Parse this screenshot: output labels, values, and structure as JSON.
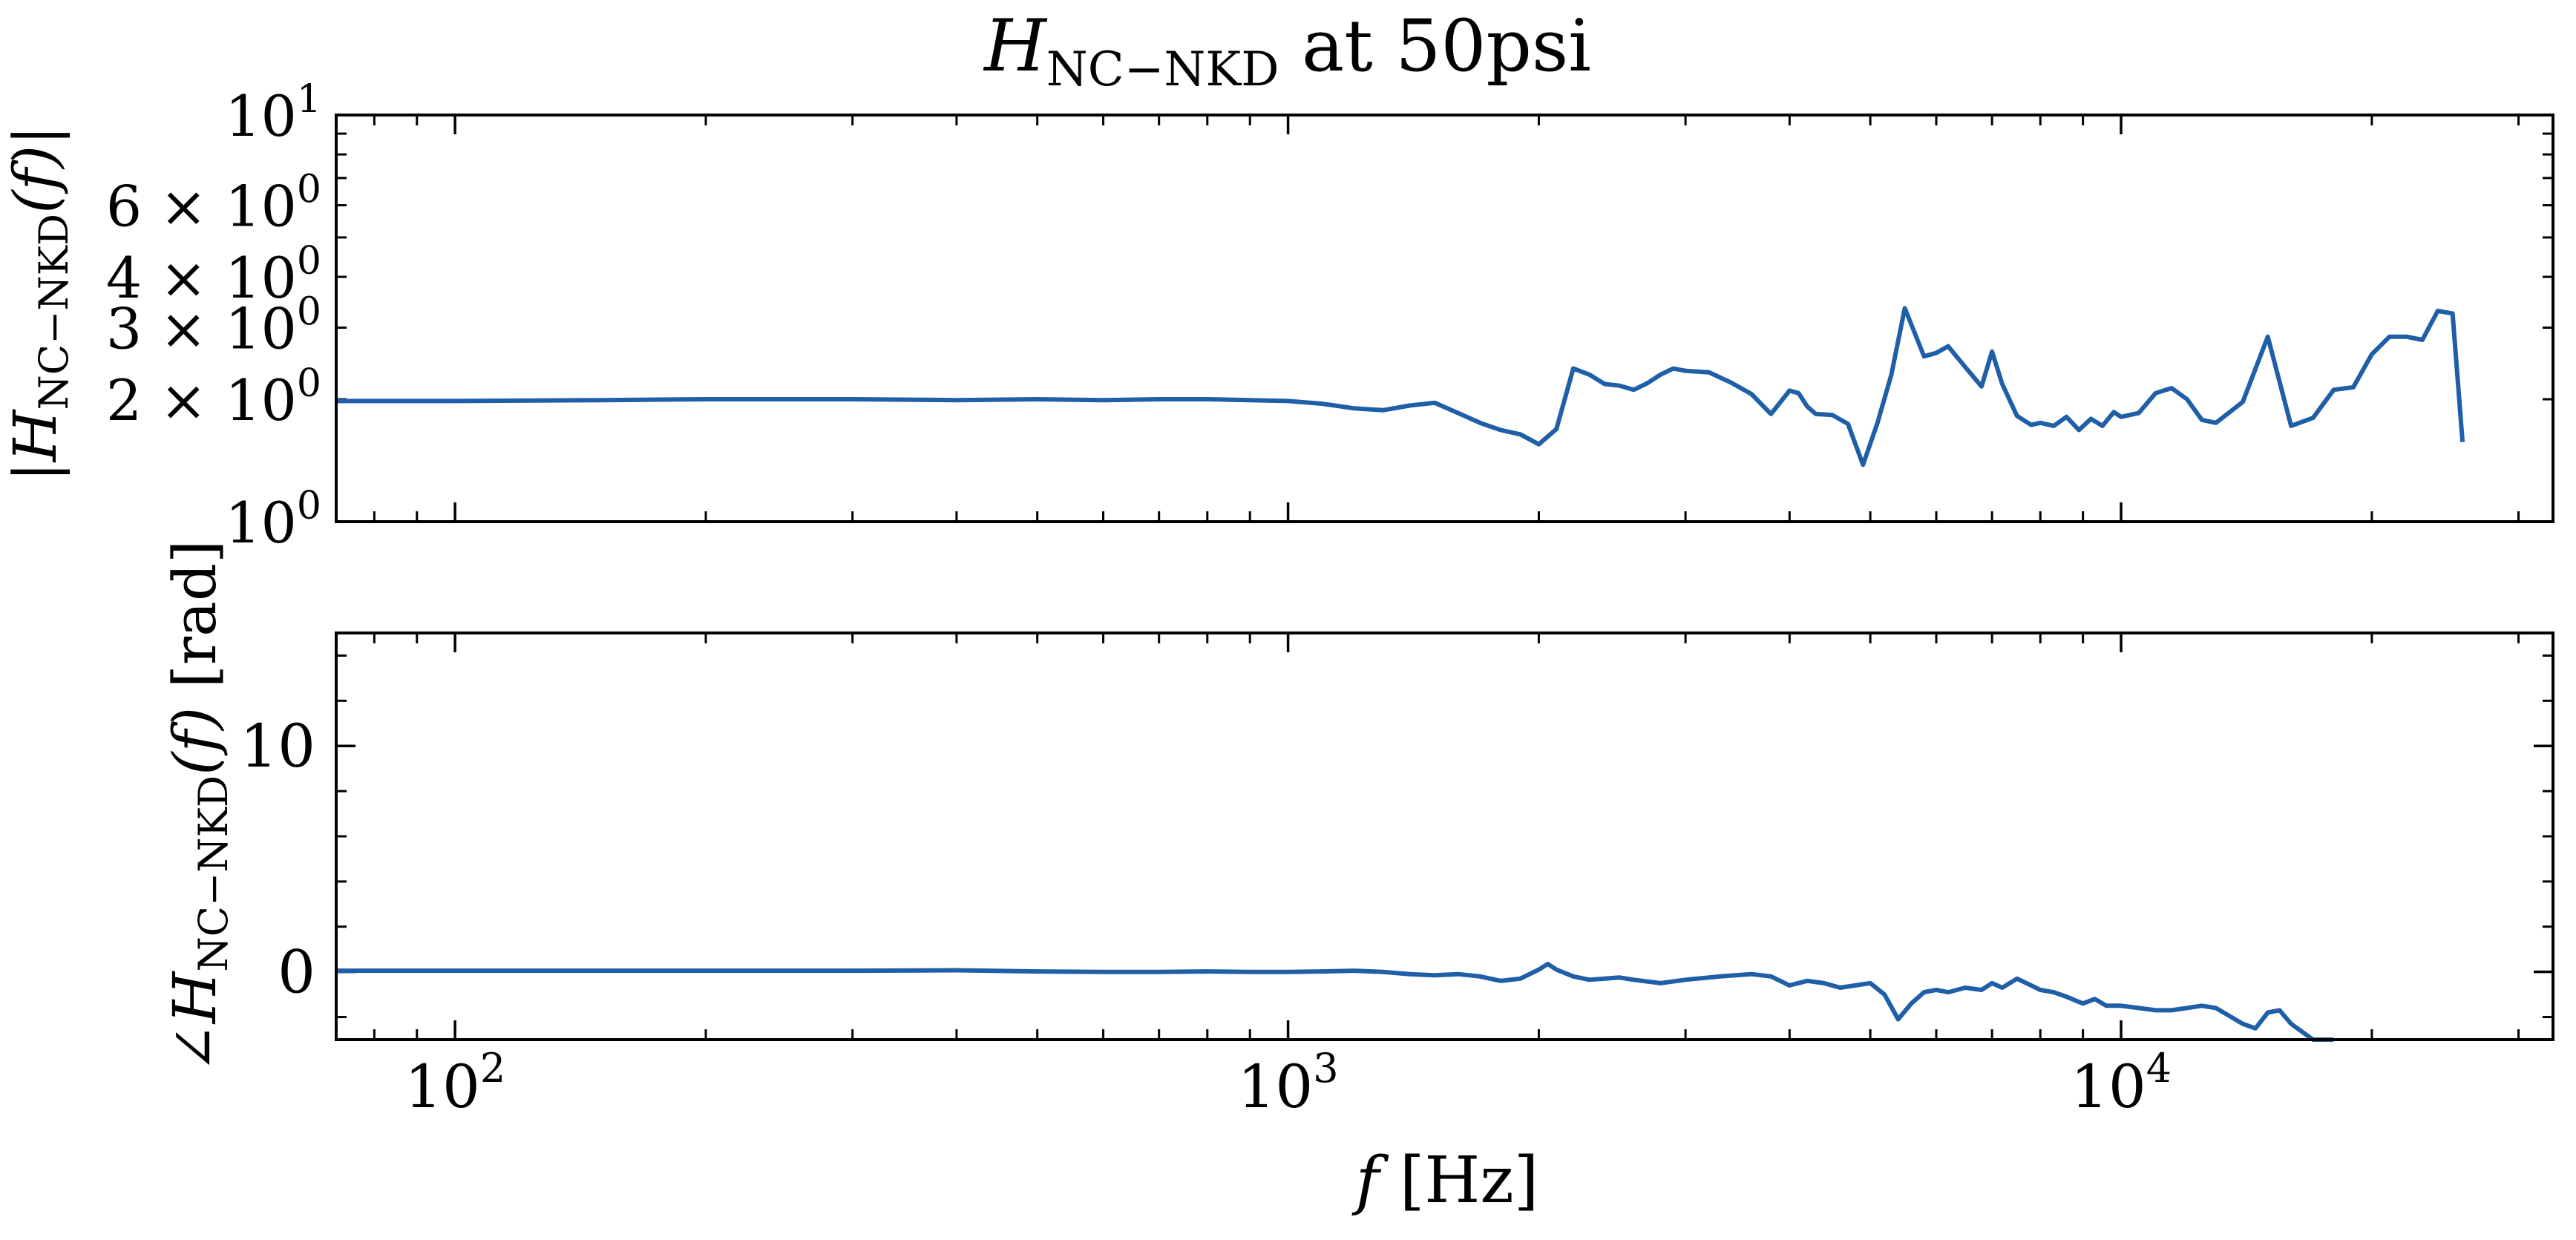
{
  "figure": {
    "title_main": "H",
    "title_sub": "NC−NKD",
    "title_rest": " at 50psi"
  },
  "magnitude_panel": {
    "ylabel_prefix": "|",
    "ylabel_H": "H",
    "ylabel_sub": "NC−NKD",
    "ylabel_arg": "(f)",
    "ylabel_suffix": "|",
    "yticks": [
      {
        "value": 10,
        "label_coef": "",
        "label_base": "10",
        "label_exp": "1"
      },
      {
        "value": 6,
        "label_coef": "6 × ",
        "label_base": "10",
        "label_exp": "0"
      },
      {
        "value": 4,
        "label_coef": "4 × ",
        "label_base": "10",
        "label_exp": "0"
      },
      {
        "value": 3,
        "label_coef": "3 × ",
        "label_base": "10",
        "label_exp": "0"
      },
      {
        "value": 2,
        "label_coef": "2 × ",
        "label_base": "10",
        "label_exp": "0"
      },
      {
        "value": 1,
        "label_coef": "",
        "label_base": "10",
        "label_exp": "0"
      }
    ]
  },
  "phase_panel": {
    "ylabel_angle": "∠",
    "ylabel_H": "H",
    "ylabel_sub": "NC−NKD",
    "ylabel_arg": "(f)",
    "ylabel_unit": " [rad]",
    "yticks": [
      {
        "value": 10,
        "label": "10"
      },
      {
        "value": 0,
        "label": "0"
      }
    ]
  },
  "xaxis": {
    "label_var": "f",
    "label_unit": " [Hz]",
    "ticks": [
      {
        "value": 100,
        "label_base": "10",
        "label_exp": "2"
      },
      {
        "value": 1000,
        "label_base": "10",
        "label_exp": "3"
      },
      {
        "value": 10000,
        "label_base": "10",
        "label_exp": "4"
      }
    ]
  },
  "colors": {
    "line": "#1f5fa8",
    "axes": "#000000",
    "background": "#ffffff"
  },
  "chart_data": [
    {
      "type": "line",
      "panel": "magnitude",
      "xscale": "log",
      "yscale": "log",
      "xlim": [
        72,
        33000
      ],
      "ylim": [
        1,
        10
      ],
      "grid": false,
      "series": [
        {
          "x": [
            72,
            100,
            150,
            200,
            300,
            400,
            500,
            600,
            700,
            800,
            1000,
            1100,
            1200,
            1300,
            1400,
            1500,
            1600,
            1700,
            1800,
            1900,
            2000,
            2100,
            2200,
            2300,
            2400,
            2500,
            2600,
            2700,
            2800,
            2900,
            3000,
            3200,
            3400,
            3600,
            3800,
            4000,
            4100,
            4200,
            4300,
            4500,
            4700,
            4900,
            5100,
            5300,
            5500,
            5800,
            6000,
            6200,
            6500,
            6800,
            7000,
            7200,
            7500,
            7800,
            8000,
            8300,
            8600,
            8900,
            9200,
            9500,
            9800,
            10000,
            10500,
            11000,
            11500,
            12000,
            12500,
            13000,
            14000,
            15000,
            16000,
            17000,
            18000,
            19000,
            20000,
            21000,
            22000,
            23000,
            24000,
            25000,
            25700
          ],
          "y": [
            1.98,
            1.98,
            1.99,
            2.0,
            2.0,
            1.99,
            2.0,
            1.99,
            2.0,
            2.0,
            1.98,
            1.95,
            1.9,
            1.88,
            1.93,
            1.96,
            1.85,
            1.75,
            1.68,
            1.64,
            1.55,
            1.69,
            2.38,
            2.3,
            2.18,
            2.16,
            2.11,
            2.19,
            2.3,
            2.38,
            2.35,
            2.33,
            2.2,
            2.06,
            1.84,
            2.1,
            2.07,
            1.92,
            1.84,
            1.83,
            1.74,
            1.38,
            1.75,
            2.3,
            3.35,
            2.55,
            2.6,
            2.7,
            2.4,
            2.15,
            2.62,
            2.18,
            1.82,
            1.73,
            1.75,
            1.72,
            1.81,
            1.68,
            1.79,
            1.72,
            1.86,
            1.81,
            1.85,
            2.07,
            2.13,
            2.0,
            1.78,
            1.75,
            1.97,
            2.85,
            1.72,
            1.8,
            2.11,
            2.14,
            2.58,
            2.85,
            2.85,
            2.8,
            3.3,
            3.25,
            1.57
          ]
        }
      ]
    },
    {
      "type": "line",
      "panel": "phase",
      "xscale": "log",
      "yscale": "linear",
      "xlim": [
        72,
        33000
      ],
      "ylim": [
        -3,
        15
      ],
      "grid": false,
      "series": [
        {
          "x": [
            72,
            100,
            200,
            300,
            400,
            500,
            600,
            700,
            800,
            900,
            1000,
            1100,
            1200,
            1300,
            1400,
            1500,
            1600,
            1700,
            1800,
            1900,
            2000,
            2050,
            2100,
            2200,
            2300,
            2400,
            2500,
            2600,
            2800,
            3000,
            3300,
            3600,
            3800,
            4000,
            4200,
            4400,
            4600,
            4800,
            5000,
            5200,
            5400,
            5600,
            5800,
            6000,
            6200,
            6500,
            6800,
            7000,
            7200,
            7500,
            7800,
            8000,
            8300,
            8600,
            9000,
            9300,
            9600,
            10000,
            10500,
            11000,
            11500,
            12000,
            12500,
            13000,
            14000,
            14500,
            15000,
            15500,
            16000,
            17000,
            18000
          ],
          "y": [
            0.05,
            0.05,
            0.05,
            0.05,
            0.07,
            0.02,
            0.0,
            0.0,
            0.02,
            0.0,
            0.0,
            0.02,
            0.05,
            0.0,
            -0.1,
            -0.15,
            -0.1,
            -0.2,
            -0.4,
            -0.3,
            0.1,
            0.35,
            0.1,
            -0.2,
            -0.35,
            -0.3,
            -0.25,
            -0.35,
            -0.5,
            -0.35,
            -0.2,
            -0.1,
            -0.2,
            -0.6,
            -0.4,
            -0.5,
            -0.7,
            -0.6,
            -0.5,
            -1.0,
            -2.1,
            -1.4,
            -0.9,
            -0.8,
            -0.9,
            -0.7,
            -0.8,
            -0.5,
            -0.7,
            -0.3,
            -0.6,
            -0.8,
            -0.9,
            -1.1,
            -1.4,
            -1.2,
            -1.5,
            -1.5,
            -1.6,
            -1.7,
            -1.7,
            -1.6,
            -1.5,
            -1.6,
            -2.3,
            -2.5,
            -1.8,
            -1.7,
            -2.3,
            -3.0,
            -3.0
          ]
        }
      ]
    }
  ]
}
